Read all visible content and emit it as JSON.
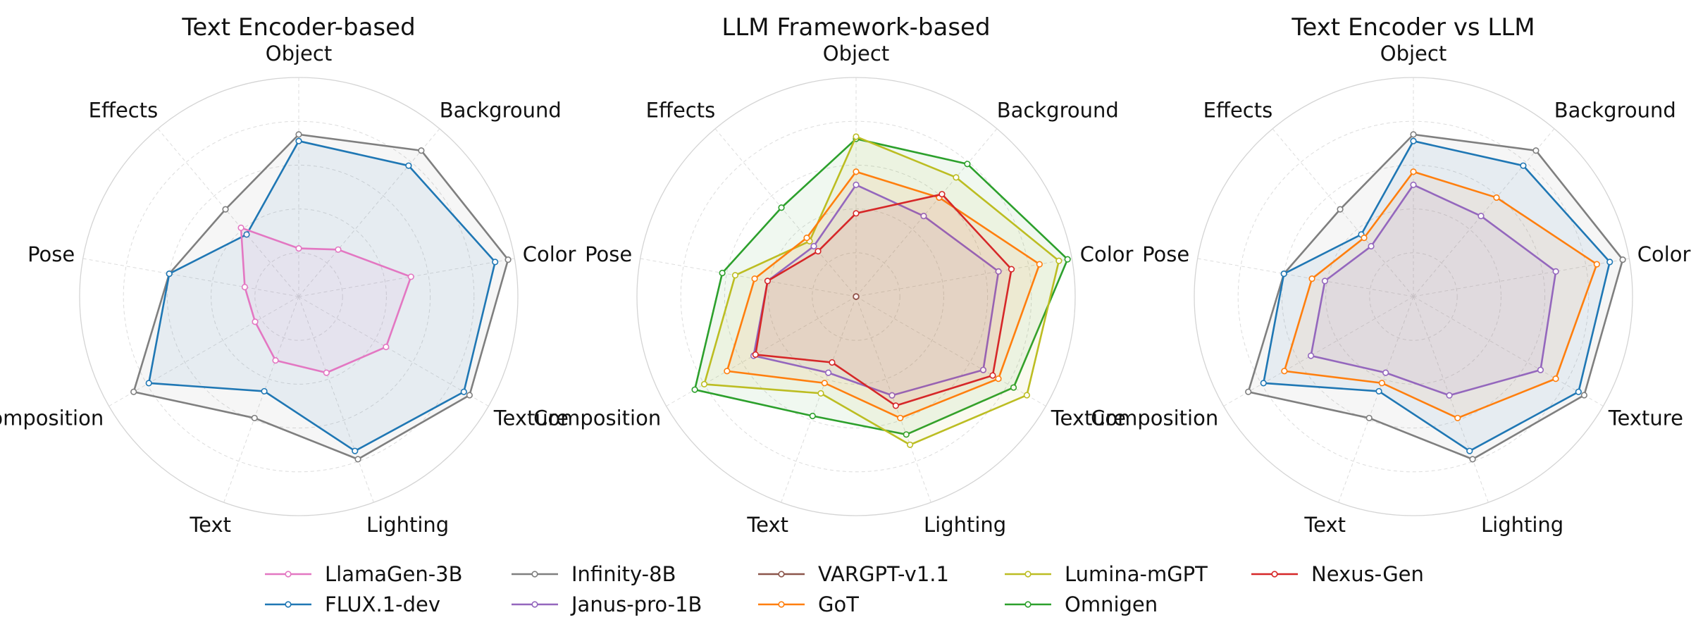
{
  "chart_data": {
    "type": "radar",
    "axes": [
      "Object",
      "Background",
      "Color",
      "Texture",
      "Lighting",
      "Text",
      "Composition",
      "Pose",
      "Effects"
    ],
    "rmax": 1.0,
    "rings": [
      0.2,
      0.4,
      0.6,
      0.8,
      1.0
    ],
    "grid": true,
    "colors": {
      "LlamaGen-3B": "#e377c2",
      "FLUX.1-dev": "#1f77b4",
      "Infinity-8B": "#7f7f7f",
      "Janus-pro-1B": "#9467bd",
      "VARGPT-v1.1": "#8c564b",
      "GoT": "#ff7f0e",
      "Lumina-mGPT": "#bcbd22",
      "Omnigen": "#2ca02c",
      "Nexus-Gen": "#d62728"
    },
    "panels": [
      {
        "title": "Text Encoder-based",
        "series": [
          {
            "name": "Infinity-8B",
            "values": [
              0.74,
              0.87,
              0.97,
              0.9,
              0.79,
              0.59,
              0.87,
              0.6,
              0.52
            ]
          },
          {
            "name": "FLUX.1-dev",
            "values": [
              0.71,
              0.78,
              0.91,
              0.87,
              0.75,
              0.46,
              0.79,
              0.6,
              0.37
            ]
          },
          {
            "name": "LlamaGen-3B",
            "values": [
              0.22,
              0.28,
              0.52,
              0.46,
              0.37,
              0.31,
              0.23,
              0.25,
              0.41
            ]
          }
        ]
      },
      {
        "title": "LLM Framework-based",
        "series": [
          {
            "name": "Omnigen",
            "values": [
              0.72,
              0.79,
              0.98,
              0.83,
              0.67,
              0.58,
              0.85,
              0.62,
              0.53
            ]
          },
          {
            "name": "Lumina-mGPT",
            "values": [
              0.73,
              0.71,
              0.94,
              0.9,
              0.72,
              0.47,
              0.8,
              0.56,
              0.33
            ]
          },
          {
            "name": "GoT",
            "values": [
              0.57,
              0.59,
              0.85,
              0.75,
              0.59,
              0.42,
              0.68,
              0.47,
              0.35
            ]
          },
          {
            "name": "Janus-pro-1B",
            "values": [
              0.51,
              0.48,
              0.66,
              0.67,
              0.48,
              0.37,
              0.54,
              0.41,
              0.3
            ]
          },
          {
            "name": "VARGPT-v1.1",
            "values": [
              0.0,
              0.0,
              0.0,
              0.0,
              0.0,
              0.0,
              0.0,
              0.0,
              0.0
            ]
          },
          {
            "name": "Nexus-Gen",
            "values": [
              0.38,
              0.61,
              0.72,
              0.72,
              0.53,
              0.32,
              0.53,
              0.41,
              0.27
            ]
          }
        ]
      },
      {
        "title": "Text Encoder vs LLM",
        "series": [
          {
            "name": "Infinity-8B",
            "values": [
              0.74,
              0.87,
              0.97,
              0.9,
              0.79,
              0.59,
              0.87,
              0.6,
              0.52
            ]
          },
          {
            "name": "FLUX.1-dev",
            "values": [
              0.71,
              0.78,
              0.91,
              0.87,
              0.75,
              0.46,
              0.79,
              0.6,
              0.37
            ]
          },
          {
            "name": "GoT",
            "values": [
              0.57,
              0.59,
              0.85,
              0.75,
              0.59,
              0.42,
              0.68,
              0.47,
              0.35
            ]
          },
          {
            "name": "Janus-pro-1B",
            "values": [
              0.51,
              0.48,
              0.66,
              0.67,
              0.48,
              0.37,
              0.54,
              0.41,
              0.3
            ]
          }
        ]
      }
    ],
    "legend": {
      "placement": "bottom",
      "entries": [
        "LlamaGen-3B",
        "FLUX.1-dev",
        "Infinity-8B",
        "Janus-pro-1B",
        "VARGPT-v1.1",
        "GoT",
        "Lumina-mGPT",
        "Omnigen",
        "Nexus-Gen"
      ]
    }
  }
}
